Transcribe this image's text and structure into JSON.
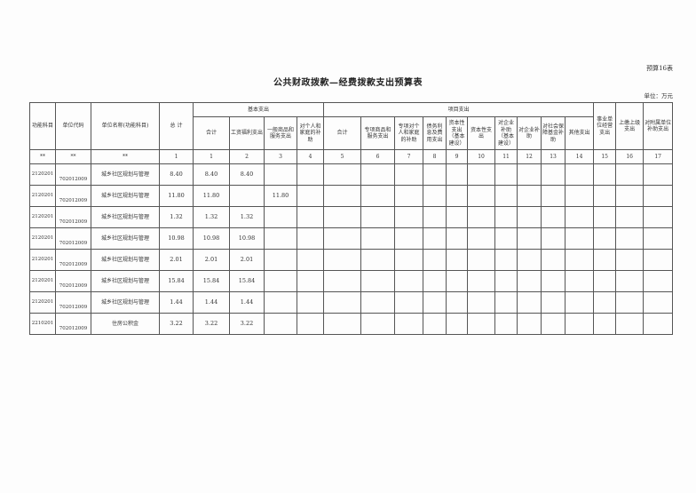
{
  "form_no": "预算16表",
  "title": "公共财政拨款—经费拨款支出预算表",
  "unit": "单位：万元",
  "headers": {
    "func_code": "功能科目",
    "unit_code": "单位代码",
    "unit_name": "单位名称(功能科目)",
    "total": "总  计",
    "basic": "基本支出",
    "basic_sub": [
      "合计",
      "工资福利支出",
      "一般商品和服务支出",
      "对个人和家庭的补助"
    ],
    "project": "项目支出",
    "project_sub": [
      "合计",
      "专项商品和服务支出",
      "专项对个人和家庭的补助",
      "债务利息及费用支出",
      "资本性支出（基本建设）",
      "资本性支出",
      "对企业补助（基本建设）",
      "对企业补助",
      "对社会保障基金补助",
      "其他支出"
    ],
    "op": "事业单位经营支出",
    "upper": "上缴上级支出",
    "sub": "对附属单位补助支出"
  },
  "index_row": [
    "**",
    "**",
    "**",
    "1",
    "1",
    "2",
    "3",
    "4",
    "5",
    "6",
    "7",
    "8",
    "9",
    "10",
    "11",
    "12",
    "13",
    "14",
    "15",
    "16",
    "17"
  ],
  "rows": [
    {
      "func": "2120201",
      "code": "702012009",
      "name": "城乡社区规划与管理",
      "total": "8.40",
      "basic_total": "8.40",
      "wage": "8.40",
      "goods": ""
    },
    {
      "func": "2120201",
      "code": "702012009",
      "name": "城乡社区规划与管理",
      "total": "11.80",
      "basic_total": "11.80",
      "wage": "",
      "goods": "11.80"
    },
    {
      "func": "2120201",
      "code": "702012009",
      "name": "城乡社区规划与管理",
      "total": "1.32",
      "basic_total": "1.32",
      "wage": "1.32",
      "goods": ""
    },
    {
      "func": "2120201",
      "code": "702012009",
      "name": "城乡社区规划与管理",
      "total": "10.98",
      "basic_total": "10.98",
      "wage": "10.98",
      "goods": ""
    },
    {
      "func": "2120201",
      "code": "702012009",
      "name": "城乡社区规划与管理",
      "total": "2.01",
      "basic_total": "2.01",
      "wage": "2.01",
      "goods": ""
    },
    {
      "func": "2120201",
      "code": "702012009",
      "name": "城乡社区规划与管理",
      "total": "15.84",
      "basic_total": "15.84",
      "wage": "15.84",
      "goods": ""
    },
    {
      "func": "2120201",
      "code": "702012009",
      "name": "城乡社区规划与管理",
      "total": "1.44",
      "basic_total": "1.44",
      "wage": "1.44",
      "goods": ""
    },
    {
      "func": "2210201",
      "code": "702012009",
      "name": "住房公积金",
      "total": "3.22",
      "basic_total": "3.22",
      "wage": "3.22",
      "goods": ""
    }
  ]
}
